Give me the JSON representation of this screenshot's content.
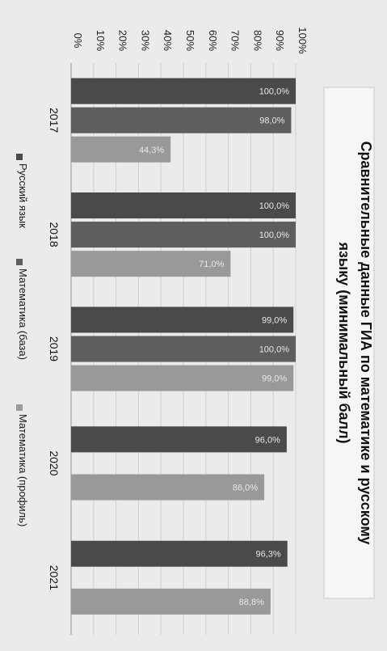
{
  "chart_data": {
    "type": "bar",
    "orientation": "vertical-rotated",
    "title_line1": "Сравнительные данные ГИА по математике и русскому",
    "title_line2": "языку (минимальный балл)",
    "categories": [
      "2017",
      "2018",
      "2019",
      "2020",
      "2021"
    ],
    "series": [
      {
        "name": "Русский язык",
        "color": "#4a4a4a",
        "values": [
          100.0,
          100.0,
          99.0,
          96.0,
          96.3
        ],
        "labels": [
          "100,0%",
          "100,0%",
          "99,0%",
          "96,0%",
          "96,3%"
        ]
      },
      {
        "name": "Математика  (база)",
        "color": "#5e5e5e",
        "values": [
          98.0,
          100.0,
          100.0,
          null,
          null
        ],
        "labels": [
          "98,0%",
          "100,0%",
          "100,0%",
          "",
          ""
        ]
      },
      {
        "name": "Математика (профиль)",
        "color": "#999999",
        "values": [
          44.3,
          71.0,
          99.0,
          86.0,
          88.8
        ],
        "labels": [
          "44,3%",
          "71,0%",
          "99,0%",
          "86,0%",
          "88,8%"
        ]
      }
    ],
    "value_axis_ticks": [
      "0%",
      "10%",
      "20%",
      "30%",
      "40%",
      "50%",
      "60%",
      "70%",
      "80%",
      "90%",
      "100%"
    ],
    "ylim": [
      0,
      100
    ],
    "grid": true,
    "legend_position": "bottom"
  }
}
